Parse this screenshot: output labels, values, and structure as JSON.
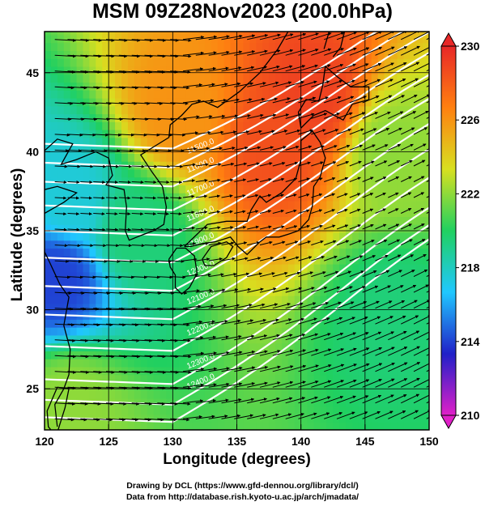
{
  "title": "MSM 09Z28Nov2023 (200.0hPa)",
  "credits": {
    "line1": "Drawing by DCL (https://www.gfd-dennou.org/library/dcl/)",
    "line2": "Data from http://database.rish.kyoto-u.ac.jp/arch/jmadata/"
  },
  "chart_data": {
    "type": "heatmap",
    "xlabel": "Longitude (degrees)",
    "ylabel": "Latitude  (degrees)",
    "xlim": [
      120,
      150
    ],
    "ylim": [
      22.4,
      47.6
    ],
    "xticks": [
      120,
      125,
      130,
      135,
      140,
      145,
      150
    ],
    "yticks": [
      25,
      30,
      35,
      40,
      45
    ],
    "colorbar": {
      "range": [
        210,
        230
      ],
      "ticks": [
        210,
        214,
        218,
        222,
        226,
        230
      ],
      "colors": [
        "#e020c8",
        "#2020c8",
        "#20c8ff",
        "#20d060",
        "#d8e020",
        "#ff8010",
        "#e82828"
      ]
    },
    "temperature_field": [
      {
        "lon": 138,
        "lat": 40.5,
        "value": 228.5
      },
      {
        "lon": 141,
        "lat": 43.5,
        "value": 229
      },
      {
        "lon": 130.5,
        "lat": 42.5,
        "value": 226
      },
      {
        "lon": 121,
        "lat": 32,
        "value": 214
      },
      {
        "lon": 122,
        "lat": 37,
        "value": 217.5
      },
      {
        "lon": 127,
        "lat": 35,
        "value": 219.5
      },
      {
        "lon": 122,
        "lat": 24,
        "value": 222
      },
      {
        "lon": 147,
        "lat": 30,
        "value": 219.5
      },
      {
        "lon": 147,
        "lat": 40,
        "value": 222
      }
    ],
    "contour_labels": [
      "11500.0",
      "11600.0",
      "11700.0",
      "11800.0",
      "11900.0",
      "12000.0",
      "12100.0",
      "12200.0",
      "12300.0",
      "12400.0"
    ],
    "wind_direction": "westerly"
  }
}
